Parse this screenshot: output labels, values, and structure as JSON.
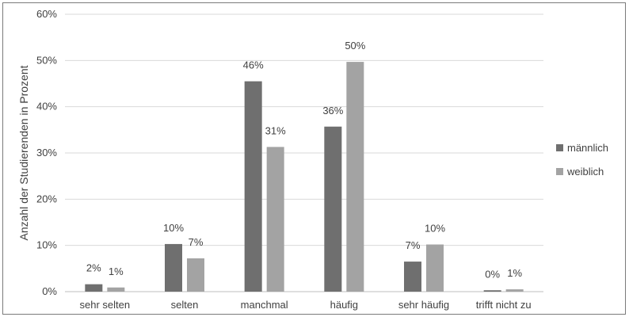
{
  "chart_data": {
    "type": "bar",
    "title": "",
    "xlabel": "",
    "ylabel": "Anzahl der Studierenden in Prozent",
    "ylim": [
      0,
      60
    ],
    "yticks": [
      "0%",
      "10%",
      "20%",
      "30%",
      "40%",
      "50%",
      "60%"
    ],
    "grid": true,
    "legend_position": "right",
    "categories": [
      "sehr selten",
      "selten",
      "manchmal",
      "häufig",
      "sehr häufig",
      "trifft nicht zu"
    ],
    "series": [
      {
        "name": "männlich",
        "color": "#6f6f6f",
        "values": [
          1.6,
          10.3,
          45.5,
          35.7,
          6.5,
          0.3
        ],
        "labels": [
          "2%",
          "10%",
          "46%",
          "36%",
          "7%",
          "0%"
        ]
      },
      {
        "name": "weiblich",
        "color": "#a3a3a3",
        "values": [
          0.9,
          7.2,
          31.3,
          49.7,
          10.2,
          0.5
        ],
        "labels": [
          "1%",
          "7%",
          "31%",
          "50%",
          "10%",
          "1%"
        ]
      }
    ]
  }
}
